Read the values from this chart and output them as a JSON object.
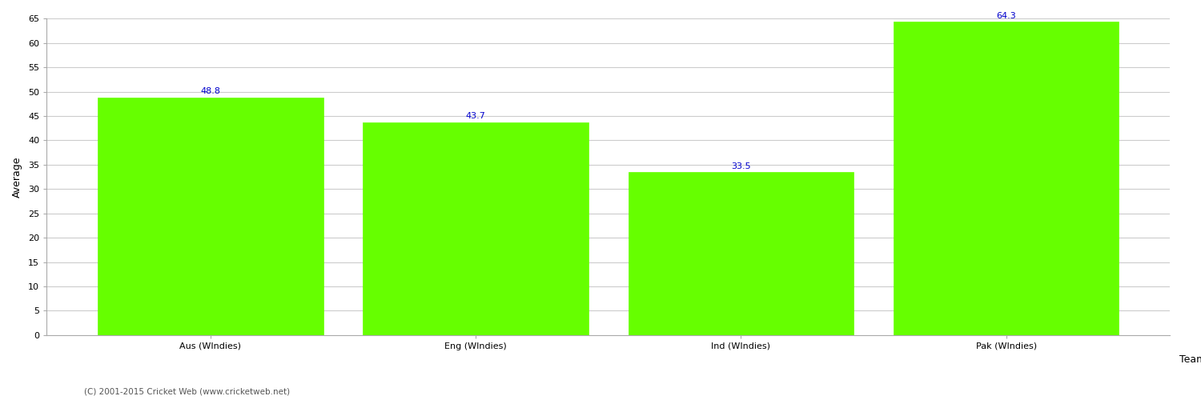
{
  "categories": [
    "Aus (WIndies)",
    "Eng (WIndies)",
    "Ind (WIndies)",
    "Pak (WIndies)"
  ],
  "values": [
    48.8,
    43.7,
    33.5,
    64.3
  ],
  "bar_color": "#66ff00",
  "bar_edge_color": "#66ff00",
  "value_color": "#0000cc",
  "xlabel": "Team",
  "ylabel": "Average",
  "ylim": [
    0,
    65
  ],
  "yticks": [
    0,
    5,
    10,
    15,
    20,
    25,
    30,
    35,
    40,
    45,
    50,
    55,
    60,
    65
  ],
  "grid_color": "#cccccc",
  "background_color": "#ffffff",
  "footer": "(C) 2001-2015 Cricket Web (www.cricketweb.net)",
  "value_fontsize": 8,
  "axis_label_fontsize": 9,
  "tick_fontsize": 8,
  "footer_fontsize": 7.5
}
